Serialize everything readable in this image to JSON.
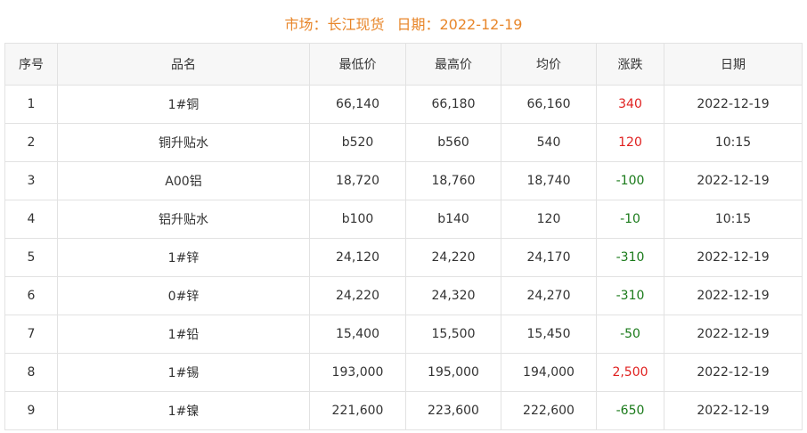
{
  "title": {
    "market": "市场：长江现货",
    "date": "日期：2022-12-19"
  },
  "table": {
    "columns": [
      "序号",
      "品名",
      "最低价",
      "最高价",
      "均价",
      "涨跌",
      "日期"
    ],
    "rows": [
      [
        "1",
        "1#铜",
        "66,140",
        "66,180",
        "66,160",
        "340",
        "2022-12-19"
      ],
      [
        "2",
        "铜升贴水",
        "b520",
        "b560",
        "540",
        "120",
        "10:15"
      ],
      [
        "3",
        "A00铝",
        "18,720",
        "18,760",
        "18,740",
        "-100",
        "2022-12-19"
      ],
      [
        "4",
        "铝升贴水",
        "b100",
        "b140",
        "120",
        "-10",
        "10:15"
      ],
      [
        "5",
        "1#锌",
        "24,120",
        "24,220",
        "24,170",
        "-310",
        "2022-12-19"
      ],
      [
        "6",
        "0#锌",
        "24,220",
        "24,320",
        "24,270",
        "-310",
        "2022-12-19"
      ],
      [
        "7",
        "1#铅",
        "15,400",
        "15,500",
        "15,450",
        "-50",
        "2022-12-19"
      ],
      [
        "8",
        "1#锡",
        "193,000",
        "195,000",
        "194,000",
        "2,500",
        "2022-12-19"
      ],
      [
        "9",
        "1#镍",
        "221,600",
        "223,600",
        "222,600",
        "-650",
        "2022-12-19"
      ]
    ]
  }
}
